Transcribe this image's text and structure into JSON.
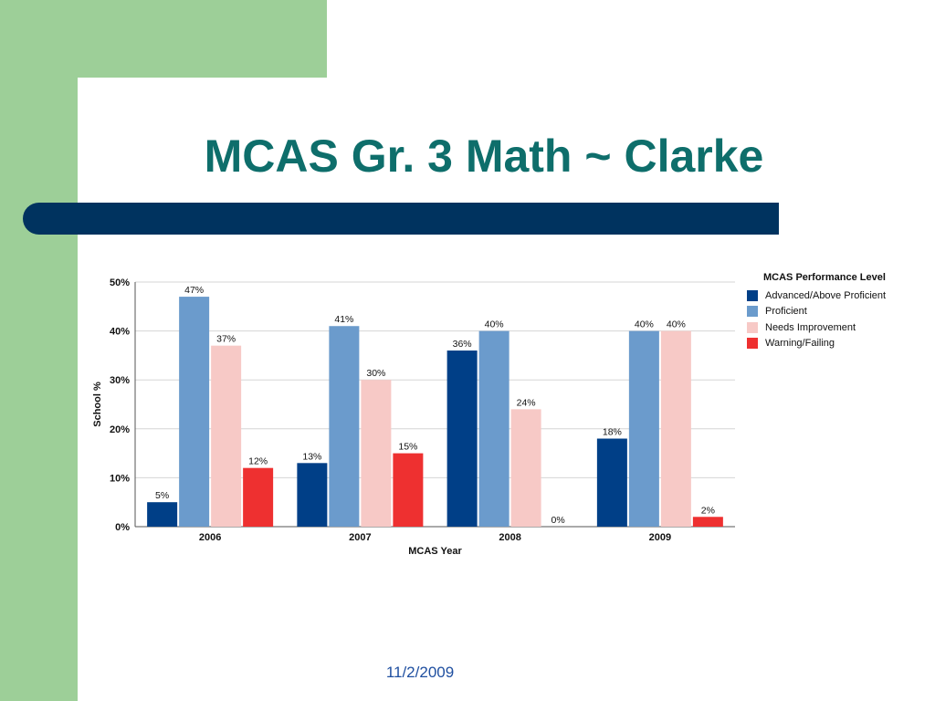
{
  "slide": {
    "title": "MCAS Gr. 3 Math ~ Clarke",
    "footer_date": "11/2/2009"
  },
  "colors": {
    "green_accent": "#9dcf98",
    "title_teal": "#0e6e6b",
    "stripe_navy": "#00335f",
    "advanced": "#003f87",
    "proficient": "#6b9bcc",
    "needs_improvement": "#f7c9c6",
    "warning": "#ee3030"
  },
  "chart_data": {
    "type": "bar",
    "categories": [
      "2006",
      "2007",
      "2008",
      "2009"
    ],
    "series": [
      {
        "name": "Advanced/Above Proficient",
        "values": [
          5,
          13,
          36,
          18
        ],
        "labels": [
          "5%",
          "13%",
          "36%",
          "18%"
        ]
      },
      {
        "name": "Proficient",
        "values": [
          47,
          41,
          40,
          40
        ],
        "labels": [
          "47%",
          "41%",
          "40%",
          "40%"
        ]
      },
      {
        "name": "Needs Improvement",
        "values": [
          37,
          30,
          24,
          40
        ],
        "labels": [
          "37%",
          "30%",
          "24%",
          "40%"
        ]
      },
      {
        "name": "Warning/Failing",
        "values": [
          12,
          15,
          0,
          2
        ],
        "labels": [
          "12%",
          "15%",
          "0%",
          "2%"
        ]
      }
    ],
    "xlabel": "MCAS Year",
    "ylabel": "School %",
    "ylim": [
      0,
      50
    ],
    "yticks": [
      "0%",
      "10%",
      "20%",
      "30%",
      "40%",
      "50%"
    ],
    "legend_title": "MCAS Performance Level",
    "legend_position": "right",
    "grid": true
  }
}
